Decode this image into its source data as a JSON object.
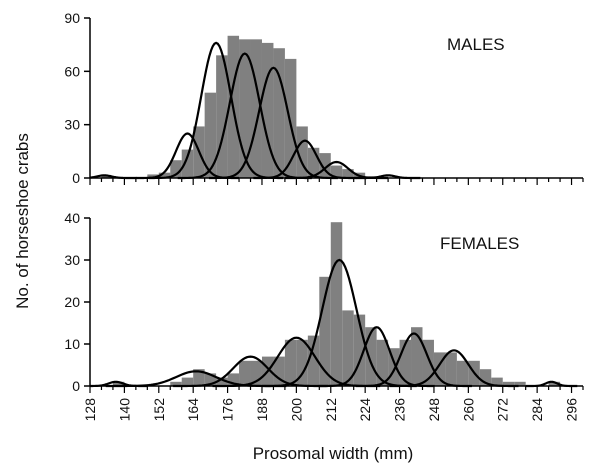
{
  "chart_data": {
    "type": "bar",
    "shared_y_label": "No. of horseshoe crabs",
    "xlabel": "Prosomal width (mm)",
    "x_tick_labels": [
      "128",
      "140",
      "152",
      "164",
      "176",
      "188",
      "200",
      "212",
      "224",
      "236",
      "248",
      "260",
      "272",
      "284",
      "296"
    ],
    "x_ticks": [
      128,
      140,
      152,
      164,
      176,
      188,
      200,
      212,
      224,
      236,
      248,
      260,
      272,
      284,
      296
    ],
    "xlim": [
      128,
      300
    ],
    "bin_width": 4,
    "bar_color": "#808080",
    "curve_color": "#000000",
    "panels": [
      {
        "label": "MALES",
        "ylim": [
          0,
          90
        ],
        "y_ticks": [
          0,
          30,
          60,
          90
        ],
        "y_tick_labels": [
          "0",
          "30",
          "60",
          "90"
        ],
        "series": [
          {
            "x": [
              132,
              148,
              152,
              156,
              160,
              164,
              168,
              172,
              176,
              180,
              184,
              188,
              192,
              196,
              200,
              204,
              208,
              212,
              216,
              220,
              224
            ],
            "values": [
              1,
              2,
              3,
              10,
              16,
              29,
              48,
              69,
              80,
              78,
              78,
              76,
              73,
              67,
              29,
              17,
              14,
              7,
              5,
              3,
              1
            ]
          }
        ],
        "curves": [
          {
            "center": 133,
            "height": 1.5,
            "sd": 2.5
          },
          {
            "center": 162,
            "height": 25,
            "sd": 4
          },
          {
            "center": 172,
            "height": 76,
            "sd": 5.2
          },
          {
            "center": 182,
            "height": 70,
            "sd": 5.2
          },
          {
            "center": 192,
            "height": 62,
            "sd": 5.0
          },
          {
            "center": 203,
            "height": 21,
            "sd": 4
          },
          {
            "center": 214,
            "height": 9,
            "sd": 4
          },
          {
            "center": 232,
            "height": 1.5,
            "sd": 2.5
          }
        ]
      },
      {
        "label": "FEMALES",
        "ylim": [
          0,
          40
        ],
        "y_ticks": [
          0,
          10,
          20,
          30,
          40
        ],
        "y_tick_labels": [
          "0",
          "10",
          "20",
          "30",
          "40"
        ],
        "series": [
          {
            "x": [
              136,
              156,
              160,
              164,
              168,
              172,
              176,
              180,
              184,
              188,
              192,
              196,
              200,
              204,
              208,
              212,
              216,
              220,
              224,
              228,
              232,
              236,
              240,
              244,
              248,
              252,
              256,
              260,
              264,
              268,
              272,
              276,
              288
            ],
            "values": [
              1,
              1,
              2,
              4,
              3,
              2,
              3,
              6,
              6,
              7,
              7,
              11,
              11,
              12,
              26,
              39,
              18,
              17,
              14,
              11,
              9,
              11,
              14,
              11,
              8,
              8,
              6,
              6,
              4,
              2,
              1,
              1,
              1
            ]
          }
        ],
        "curves": [
          {
            "center": 137,
            "height": 1,
            "sd": 2.5
          },
          {
            "center": 165,
            "height": 3.5,
            "sd": 7
          },
          {
            "center": 184,
            "height": 7,
            "sd": 6
          },
          {
            "center": 200,
            "height": 11.5,
            "sd": 6.5
          },
          {
            "center": 215,
            "height": 30,
            "sd": 6
          },
          {
            "center": 228,
            "height": 14,
            "sd": 4.5
          },
          {
            "center": 241,
            "height": 12.5,
            "sd": 4.5
          },
          {
            "center": 255,
            "height": 8.5,
            "sd": 5
          },
          {
            "center": 289,
            "height": 1,
            "sd": 2
          }
        ]
      }
    ]
  }
}
